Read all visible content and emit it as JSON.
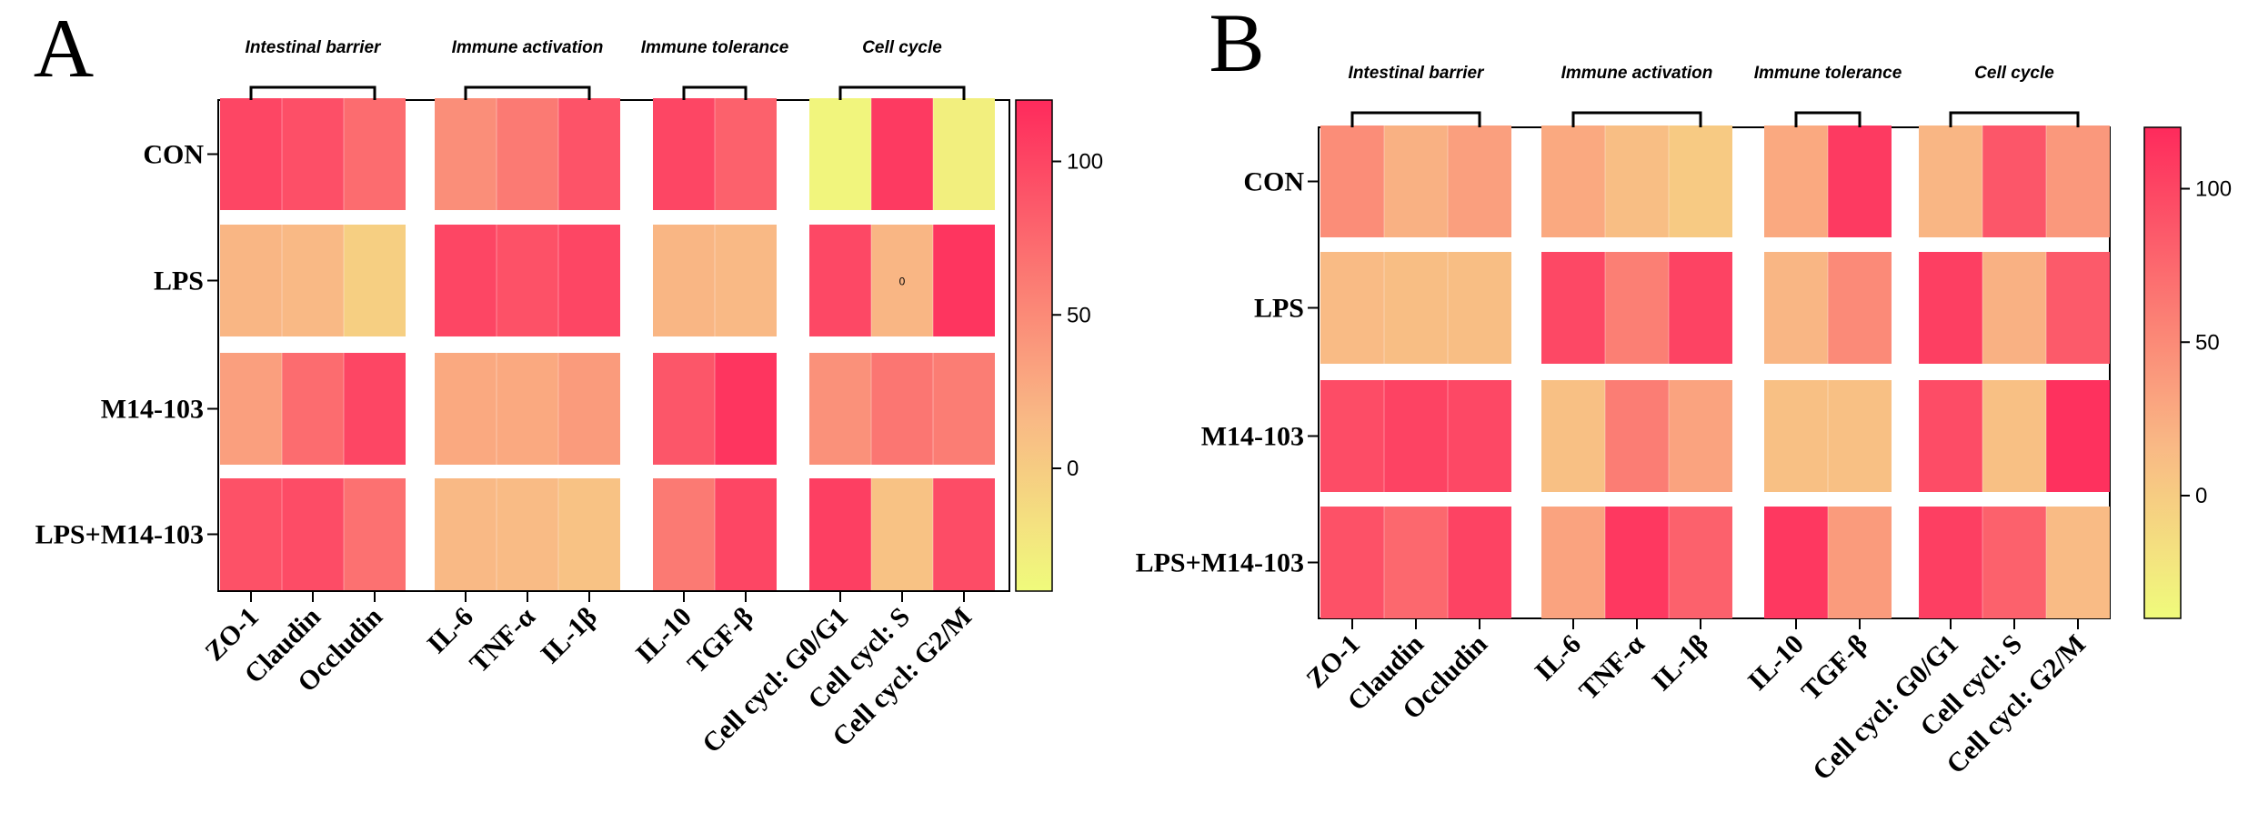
{
  "chart_data": [
    {
      "type": "heatmap",
      "panel_label": "A",
      "rows": [
        "CON",
        "LPS",
        "M14-103",
        "LPS+M14-103"
      ],
      "columns": [
        "ZO-1",
        "Claudin",
        "Occludin",
        "IL-6",
        "TNF-α",
        "IL-1β",
        "IL-10",
        "TGF-β",
        "Cell cycl: G0/G1",
        "Cell cycl: S",
        "Cell cycl: G2/M"
      ],
      "column_groups": [
        {
          "label": "Intestinal barrier",
          "start": 0,
          "end": 2
        },
        {
          "label": "Immune activation",
          "start": 3,
          "end": 5
        },
        {
          "label": "Immune tolerance",
          "start": 6,
          "end": 7
        },
        {
          "label": "Cell cycle",
          "start": 8,
          "end": 10
        }
      ],
      "values": [
        [
          100,
          93,
          72,
          47,
          62,
          90,
          100,
          80,
          -35,
          108,
          -30
        ],
        [
          18,
          16,
          -3,
          100,
          92,
          100,
          18,
          16,
          98,
          18,
          112
        ],
        [
          35,
          72,
          100,
          28,
          28,
          38,
          88,
          112,
          45,
          65,
          60
        ],
        [
          92,
          95,
          68,
          16,
          14,
          8,
          62,
          100,
          105,
          8,
          95
        ]
      ],
      "cell_annotation": {
        "row": 1,
        "col": 9,
        "text": "0"
      },
      "colorbar": {
        "min": -40,
        "max": 120,
        "ticks": [
          0,
          50,
          100
        ],
        "low_color": "#F0FB7C",
        "mid_color": "#F9B985",
        "high_color": "#FE2A5C"
      }
    },
    {
      "type": "heatmap",
      "panel_label": "B",
      "rows": [
        "CON",
        "LPS",
        "M14-103",
        "LPS+M14-103"
      ],
      "columns": [
        "ZO-1",
        "Claudin",
        "Occludin",
        "IL-6",
        "TNF-α",
        "IL-1β",
        "IL-10",
        "TGF-β",
        "Cell cycl: G0/G1",
        "Cell cycl: S",
        "Cell cycl: G2/M"
      ],
      "column_groups": [
        {
          "label": "Intestinal barrier",
          "start": 0,
          "end": 2
        },
        {
          "label": "Immune activation",
          "start": 3,
          "end": 5
        },
        {
          "label": "Immune tolerance",
          "start": 6,
          "end": 7
        },
        {
          "label": "Cell cycle",
          "start": 8,
          "end": 10
        }
      ],
      "values": [
        [
          48,
          22,
          35,
          28,
          12,
          2,
          28,
          108,
          18,
          88,
          40
        ],
        [
          14,
          12,
          12,
          98,
          58,
          102,
          18,
          50,
          105,
          22,
          85
        ],
        [
          95,
          102,
          98,
          10,
          60,
          32,
          10,
          10,
          95,
          10,
          115
        ],
        [
          92,
          75,
          102,
          32,
          110,
          80,
          110,
          38,
          105,
          80,
          14
        ]
      ],
      "colorbar": {
        "min": -40,
        "max": 120,
        "ticks": [
          0,
          50,
          100
        ],
        "low_color": "#F0FB7C",
        "mid_color": "#F9B985",
        "high_color": "#FE2A5C"
      }
    }
  ]
}
